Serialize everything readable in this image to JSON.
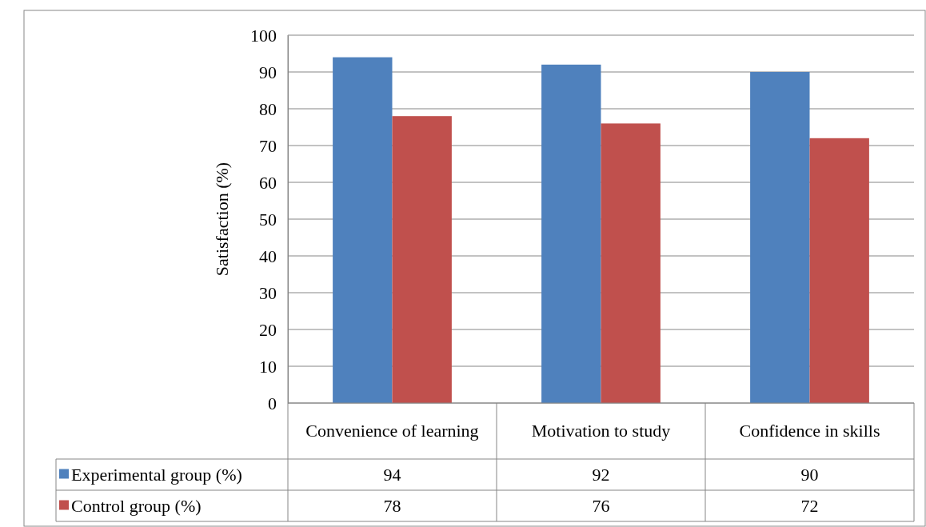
{
  "chart_data": {
    "type": "bar",
    "ylabel": "Satisfaction (%)",
    "categories": [
      "Convenience of learning",
      "Motivation to study",
      "Confidence in skills"
    ],
    "series": [
      {
        "name": "Experimental group (%)",
        "color": "#4f81bd",
        "values": [
          94,
          92,
          90
        ]
      },
      {
        "name": "Control group (%)",
        "color": "#c0504d",
        "values": [
          78,
          76,
          72
        ]
      }
    ],
    "ylim": [
      0,
      100
    ],
    "yticks": [
      0,
      10,
      20,
      30,
      40,
      50,
      60,
      70,
      80,
      90,
      100
    ],
    "grid": "y",
    "legend": "bottom",
    "data_labels": true
  }
}
